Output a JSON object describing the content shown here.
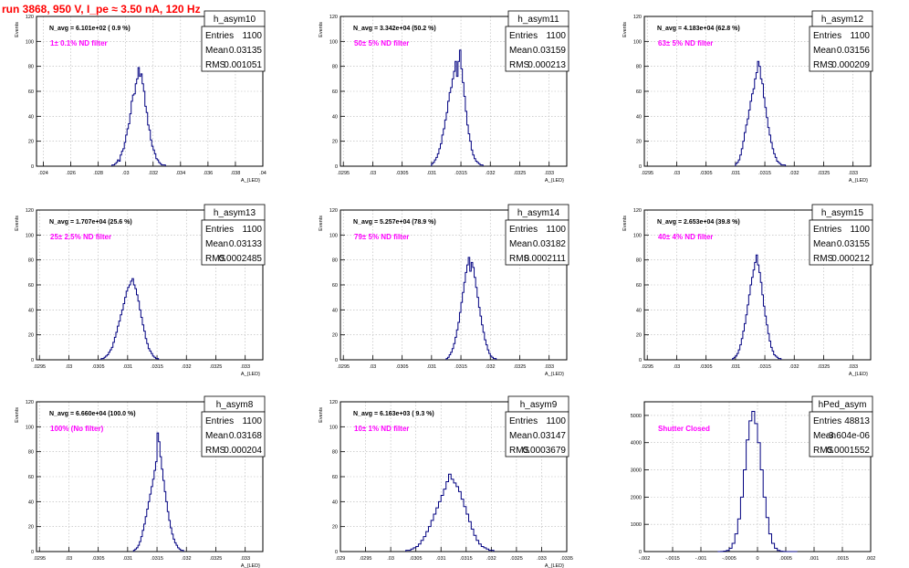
{
  "page": {
    "title": "run 3868,   950 V, I_pe ≈ 3.50 nA, 120 Hz"
  },
  "colors": {
    "histogram_line": "#000080",
    "annotation": "#ff00ff",
    "title_text": "#ff0000",
    "axes": "#000000",
    "grid": "#b4b4b4"
  },
  "stat_labels": {
    "entries": "Entries",
    "mean": "Mean",
    "rms": "RMS"
  },
  "chart_data": [
    {
      "type": "bar",
      "name": "h_asym10",
      "ylabel": "Events",
      "xlabel": "A_{LED}",
      "nlabel": "N_avg = 6.101e+02 ( 0.9 %)",
      "annotation": "1± 0.1% ND filter",
      "stats": {
        "entries": "1100",
        "mean": "0.03135",
        "rms": "0.001051"
      },
      "xlim": [
        0.0235,
        0.04
      ],
      "ylim": [
        0,
        120
      ],
      "xticks": [
        0.024,
        0.026,
        0.028,
        0.03,
        0.032,
        0.034,
        0.036,
        0.038,
        0.04
      ],
      "yticks": [
        0,
        20,
        40,
        60,
        80,
        100,
        120
      ],
      "grid": true,
      "hist": {
        "x0": 0.029,
        "dx": 0.0001,
        "values": [
          1,
          1,
          2,
          3,
          5,
          4,
          9,
          12,
          14,
          19,
          25,
          30,
          34,
          42,
          52,
          57,
          58,
          66,
          70,
          79,
          72,
          74,
          66,
          60,
          48,
          43,
          33,
          29,
          21,
          16,
          13,
          10,
          6,
          5,
          3,
          2,
          1,
          1,
          1
        ]
      }
    },
    {
      "type": "bar",
      "name": "h_asym11",
      "ylabel": "Events",
      "xlabel": "A_{LED}",
      "nlabel": "N_avg = 3.342e+04 (50.2 %)",
      "annotation": "50± 5% ND filter",
      "stats": {
        "entries": "1100",
        "mean": "0.03159",
        "rms": "0.000213"
      },
      "xlim": [
        0.02945,
        0.0333
      ],
      "ylim": [
        0,
        120
      ],
      "xticks": [
        0.0295,
        0.03,
        0.0305,
        0.031,
        0.0315,
        0.032,
        0.0325,
        0.033
      ],
      "yticks": [
        0,
        20,
        40,
        60,
        80,
        100,
        120
      ],
      "grid": true,
      "hist": {
        "x0": 0.031,
        "dx": 2.5e-05,
        "values": [
          2,
          3,
          5,
          7,
          10,
          14,
          18,
          25,
          30,
          37,
          43,
          52,
          59,
          63,
          70,
          76,
          84,
          72,
          84,
          93,
          78,
          67,
          56,
          44,
          33,
          26,
          20,
          13,
          9,
          6,
          4,
          3,
          2,
          1,
          1
        ]
      }
    },
    {
      "type": "bar",
      "name": "h_asym12",
      "ylabel": "Events",
      "xlabel": "A_{LED}",
      "nlabel": "N_avg = 4.183e+04 (62.8 %)",
      "annotation": "63± 5% ND filter",
      "stats": {
        "entries": "1100",
        "mean": "0.03156",
        "rms": "0.000209"
      },
      "xlim": [
        0.02945,
        0.0333
      ],
      "ylim": [
        0,
        120
      ],
      "xticks": [
        0.0295,
        0.03,
        0.0305,
        0.031,
        0.0315,
        0.032,
        0.0325,
        0.033
      ],
      "yticks": [
        0,
        20,
        40,
        60,
        80,
        100,
        120
      ],
      "grid": true,
      "hist": {
        "x0": 0.031,
        "dx": 2.5e-05,
        "values": [
          2,
          3,
          5,
          9,
          14,
          20,
          27,
          33,
          38,
          45,
          52,
          58,
          62,
          70,
          75,
          84,
          80,
          70,
          66,
          55,
          47,
          39,
          31,
          25,
          19,
          14,
          10,
          7,
          4,
          3,
          2,
          1,
          1,
          1
        ]
      }
    },
    {
      "type": "bar",
      "name": "h_asym13",
      "ylabel": "Events",
      "xlabel": "A_{LED}",
      "nlabel": "N_avg = 1.707e+04 (25.6 %)",
      "annotation": "25± 2.5% ND filter",
      "stats": {
        "entries": "1100",
        "mean": "0.03133",
        "rms": "0.0002485"
      },
      "xlim": [
        0.02945,
        0.0333
      ],
      "ylim": [
        0,
        120
      ],
      "xticks": [
        0.0295,
        0.03,
        0.0305,
        0.031,
        0.0315,
        0.032,
        0.0325,
        0.033
      ],
      "yticks": [
        0,
        20,
        40,
        60,
        80,
        100,
        120
      ],
      "grid": true,
      "hist": {
        "x0": 0.03055,
        "dx": 2.5e-05,
        "values": [
          1,
          1,
          2,
          3,
          4,
          6,
          8,
          10,
          14,
          18,
          22,
          27,
          31,
          36,
          40,
          45,
          50,
          55,
          58,
          60,
          63,
          65,
          60,
          57,
          52,
          47,
          40,
          34,
          28,
          23,
          17,
          13,
          9,
          7,
          5,
          3,
          2,
          1,
          1
        ]
      }
    },
    {
      "type": "bar",
      "name": "h_asym14",
      "ylabel": "Events",
      "xlabel": "A_{LED}",
      "nlabel": "N_avg = 5.257e+04 (78.9 %)",
      "annotation": "79± 5% ND filter",
      "stats": {
        "entries": "1100",
        "mean": "0.03182",
        "rms": "0.0002111"
      },
      "xlim": [
        0.02945,
        0.0333
      ],
      "ylim": [
        0,
        120
      ],
      "xticks": [
        0.0295,
        0.03,
        0.0305,
        0.031,
        0.0315,
        0.032,
        0.0325,
        0.033
      ],
      "yticks": [
        0,
        20,
        40,
        60,
        80,
        100,
        120
      ],
      "grid": true,
      "hist": {
        "x0": 0.03125,
        "dx": 2.5e-05,
        "values": [
          1,
          2,
          4,
          6,
          9,
          13,
          18,
          24,
          30,
          38,
          46,
          54,
          62,
          70,
          76,
          82,
          71,
          78,
          74,
          66,
          58,
          50,
          42,
          35,
          28,
          22,
          16,
          12,
          8,
          5,
          3,
          2,
          1,
          1
        ]
      }
    },
    {
      "type": "bar",
      "name": "h_asym15",
      "ylabel": "Events",
      "xlabel": "A_{LED}",
      "nlabel": "N_avg = 2.653e+04 (39.8 %)",
      "annotation": "40± 4% ND filter",
      "stats": {
        "entries": "1100",
        "mean": "0.03155",
        "rms": "0.000212"
      },
      "xlim": [
        0.02945,
        0.0333
      ],
      "ylim": [
        0,
        120
      ],
      "xticks": [
        0.0295,
        0.03,
        0.0305,
        0.031,
        0.0315,
        0.032,
        0.0325,
        0.033
      ],
      "yticks": [
        0,
        20,
        40,
        60,
        80,
        100,
        120
      ],
      "grid": true,
      "hist": {
        "x0": 0.03095,
        "dx": 2.5e-05,
        "values": [
          1,
          2,
          3,
          5,
          8,
          12,
          17,
          23,
          29,
          36,
          44,
          52,
          60,
          66,
          72,
          78,
          84,
          76,
          70,
          62,
          52,
          43,
          35,
          28,
          21,
          15,
          10,
          7,
          4,
          3,
          2,
          1,
          1
        ]
      }
    },
    {
      "type": "bar",
      "name": "h_asym8",
      "ylabel": "Events",
      "xlabel": "A_{LED}",
      "nlabel": "N_avg = 6.660e+04 (100.0 %)",
      "annotation": "100% (No filter)",
      "stats": {
        "entries": "1100",
        "mean": "0.03168",
        "rms": "0.000204"
      },
      "xlim": [
        0.02945,
        0.0333
      ],
      "ylim": [
        0,
        120
      ],
      "xticks": [
        0.0295,
        0.03,
        0.0305,
        0.031,
        0.0315,
        0.032,
        0.0325,
        0.033
      ],
      "yticks": [
        0,
        20,
        40,
        60,
        80,
        100,
        120
      ],
      "grid": true,
      "hist": {
        "x0": 0.0311,
        "dx": 2.5e-05,
        "values": [
          1,
          2,
          3,
          5,
          8,
          12,
          17,
          22,
          28,
          34,
          40,
          46,
          52,
          58,
          65,
          72,
          95,
          88,
          76,
          66,
          57,
          48,
          40,
          32,
          25,
          19,
          14,
          10,
          7,
          5,
          3,
          2,
          1,
          1
        ]
      }
    },
    {
      "type": "bar",
      "name": "h_asym9",
      "ylabel": "Events",
      "xlabel": "A_{LED}",
      "nlabel": "N_avg = 6.163e+03 ( 9.3 %)",
      "annotation": "10± 1% ND filter",
      "stats": {
        "entries": "1100",
        "mean": "0.03147",
        "rms": "0.0003679"
      },
      "xlim": [
        0.029,
        0.0335
      ],
      "ylim": [
        0,
        120
      ],
      "xticks": [
        0.029,
        0.0295,
        0.03,
        0.0305,
        0.031,
        0.0315,
        0.032,
        0.0325,
        0.033,
        0.0335
      ],
      "yticks": [
        0,
        20,
        40,
        60,
        80,
        100,
        120
      ],
      "grid": true,
      "hist": {
        "x0": 0.0303,
        "dx": 5e-05,
        "values": [
          1,
          1,
          2,
          3,
          4,
          6,
          9,
          12,
          16,
          20,
          25,
          30,
          35,
          40,
          45,
          50,
          56,
          62,
          58,
          55,
          52,
          48,
          42,
          36,
          30,
          24,
          18,
          13,
          9,
          6,
          4,
          3,
          2,
          1,
          1
        ]
      }
    },
    {
      "type": "bar",
      "name": "hPed_asym",
      "ylabel": "",
      "xlabel": "",
      "nlabel": "",
      "annotation": "Shutter Closed",
      "stats": {
        "entries": "48813",
        "mean": "-3.604e-06",
        "rms": "0.0001552"
      },
      "xlim": [
        -0.002,
        0.002
      ],
      "ylim": [
        0,
        5500
      ],
      "xticks": [
        -0.002,
        -0.0015,
        -0.001,
        -0.0005,
        0,
        0.0005,
        0.001,
        0.0015,
        0.002
      ],
      "yticks": [
        0,
        1000,
        2000,
        3000,
        4000,
        5000
      ],
      "grid": true,
      "hist": {
        "x0": -0.0007,
        "dx": 5e-05,
        "values": [
          2,
          5,
          15,
          40,
          120,
          300,
          650,
          1200,
          2000,
          3000,
          4100,
          4800,
          5150,
          4700,
          4000,
          3000,
          2000,
          1250,
          650,
          300,
          120,
          40,
          12,
          4,
          1,
          1,
          1,
          1
        ]
      }
    }
  ]
}
